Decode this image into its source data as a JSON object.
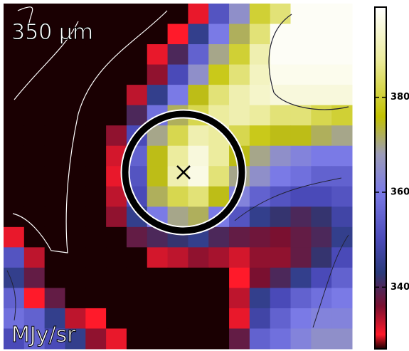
{
  "chart_data": {
    "type": "heatmap",
    "title": "350 μm",
    "unit_label": "MJy/sr",
    "colorscale": [
      [
        327,
        "#1a0002"
      ],
      [
        330,
        "#ff1a2a"
      ],
      [
        336,
        "#7a1030"
      ],
      [
        343,
        "#2a3a7a"
      ],
      [
        350,
        "#4a4ab8"
      ],
      [
        360,
        "#7a7ae6"
      ],
      [
        368,
        "#9c9cb8"
      ],
      [
        376,
        "#c2c200"
      ],
      [
        388,
        "#ecec9e"
      ],
      [
        399,
        "#ffffff"
      ]
    ],
    "zlim": [
      327,
      399
    ],
    "zticks": [
      340,
      360,
      380
    ],
    "z": [
      [
        327,
        327,
        327,
        327,
        327,
        327,
        327,
        327,
        327,
        331,
        352,
        365,
        380,
        385,
        398,
        398,
        398
      ],
      [
        327,
        327,
        327,
        327,
        327,
        327,
        327,
        327,
        330,
        345,
        360,
        372,
        385,
        398,
        398,
        398,
        398
      ],
      [
        327,
        327,
        327,
        327,
        327,
        327,
        327,
        331,
        340,
        355,
        370,
        380,
        390,
        398,
        398,
        398,
        398
      ],
      [
        327,
        327,
        327,
        327,
        327,
        327,
        327,
        335,
        350,
        365,
        378,
        385,
        392,
        397,
        397,
        397,
        397
      ],
      [
        327,
        327,
        327,
        327,
        327,
        327,
        333,
        345,
        360,
        375,
        385,
        390,
        393,
        395,
        395,
        395,
        395
      ],
      [
        327,
        327,
        327,
        327,
        327,
        327,
        340,
        358,
        372,
        382,
        388,
        390,
        388,
        385,
        385,
        382,
        380
      ],
      [
        327,
        327,
        327,
        327,
        327,
        335,
        350,
        370,
        382,
        390,
        388,
        382,
        378,
        375,
        375,
        372,
        370
      ],
      [
        327,
        327,
        327,
        327,
        327,
        332,
        355,
        375,
        388,
        395,
        388,
        375,
        370,
        365,
        362,
        360,
        360
      ],
      [
        327,
        327,
        327,
        327,
        327,
        331,
        352,
        375,
        390,
        396,
        385,
        370,
        365,
        360,
        358,
        355,
        355
      ],
      [
        327,
        327,
        327,
        327,
        327,
        333,
        350,
        372,
        382,
        385,
        375,
        362,
        355,
        352,
        350,
        350,
        352
      ],
      [
        327,
        327,
        327,
        327,
        327,
        335,
        345,
        360,
        370,
        372,
        360,
        352,
        345,
        342,
        340,
        342,
        348
      ],
      [
        331,
        327,
        327,
        327,
        327,
        327,
        338,
        340,
        342,
        345,
        340,
        338,
        337,
        336,
        338,
        340,
        345
      ],
      [
        352,
        333,
        327,
        327,
        327,
        327,
        327,
        332,
        333,
        335,
        334,
        332,
        335,
        335,
        338,
        342,
        350
      ],
      [
        345,
        338,
        327,
        327,
        327,
        327,
        327,
        327,
        327,
        327,
        327,
        330,
        336,
        340,
        345,
        350,
        355
      ],
      [
        355,
        330,
        338,
        327,
        327,
        327,
        327,
        327,
        327,
        327,
        327,
        333,
        345,
        350,
        355,
        358,
        360
      ],
      [
        358,
        355,
        345,
        333,
        330,
        327,
        327,
        327,
        327,
        327,
        327,
        331,
        348,
        355,
        360,
        362,
        362
      ],
      [
        350,
        355,
        350,
        345,
        335,
        331,
        327,
        327,
        327,
        327,
        327,
        338,
        355,
        358,
        362,
        365,
        365
      ]
    ]
  }
}
